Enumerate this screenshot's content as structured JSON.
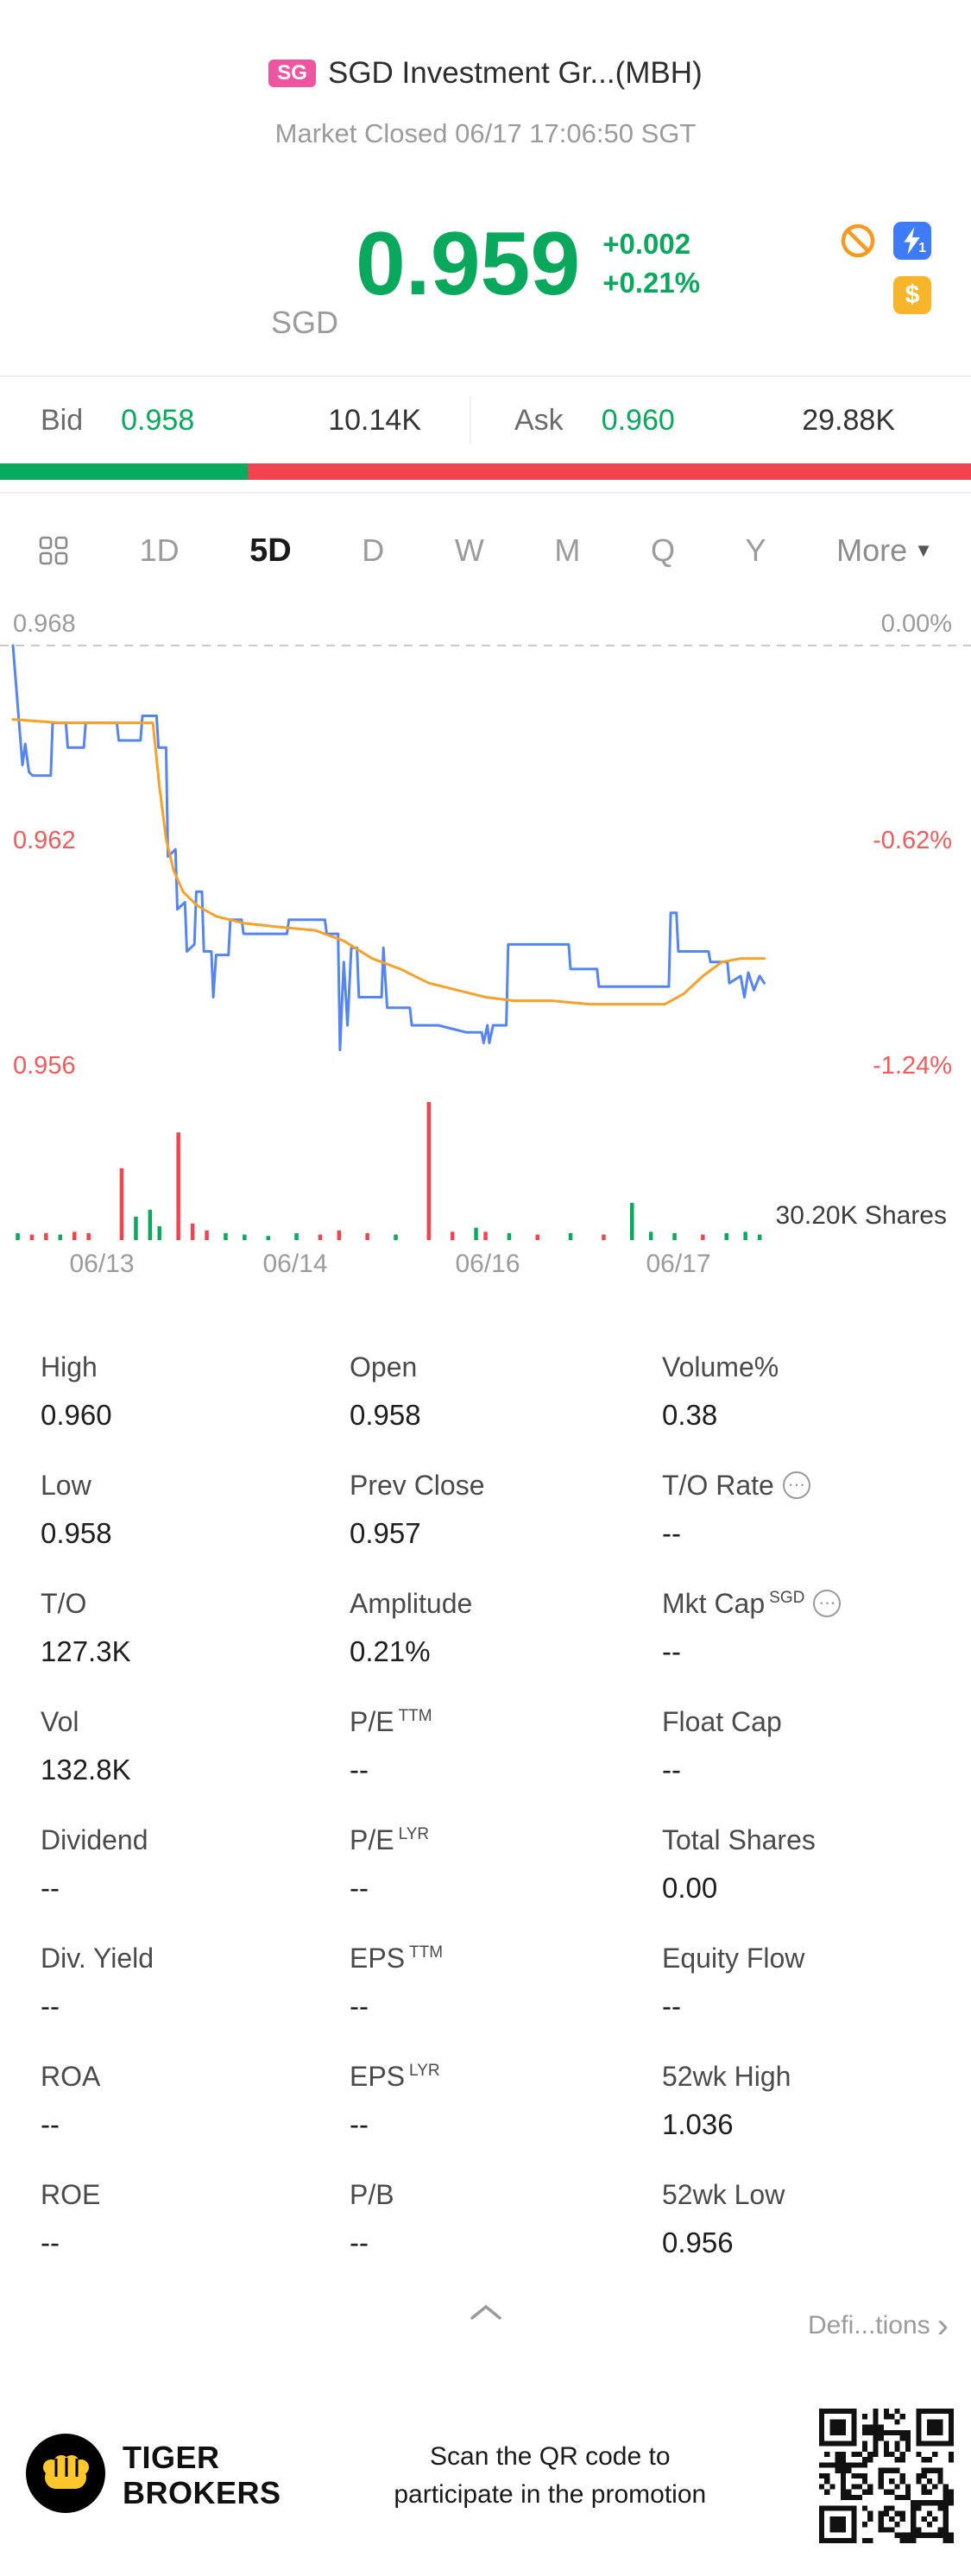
{
  "header": {
    "badge": "SG",
    "title": "SGD Investment Gr...(MBH)",
    "status": "Market Closed 06/17 17:06:50 SGT"
  },
  "quote": {
    "currency": "SGD",
    "price": "0.959",
    "change": "+0.002",
    "change_pct": "+0.21%"
  },
  "order_book": {
    "bid_label": "Bid",
    "bid_price": "0.958",
    "bid_size": "10.14K",
    "ask_label": "Ask",
    "ask_price": "0.960",
    "ask_size": "29.88K",
    "bid_ratio": 0.255
  },
  "toolbar": {
    "tabs": [
      {
        "label": "1D",
        "active": false
      },
      {
        "label": "5D",
        "active": true
      },
      {
        "label": "D",
        "active": false
      },
      {
        "label": "W",
        "active": false
      },
      {
        "label": "M",
        "active": false
      },
      {
        "label": "Q",
        "active": false
      },
      {
        "label": "Y",
        "active": false
      }
    ],
    "more_label": "More"
  },
  "chart_data": {
    "type": "line",
    "timeframe": "5D",
    "title": "5-day intraday price chart with average line and volume",
    "y_axis_left": [
      "0.968",
      "0.962",
      "0.956"
    ],
    "y_axis_right": [
      "0.00%",
      "-0.62%",
      "-1.24%"
    ],
    "x_labels": [
      "06/13",
      "06/14",
      "06/16",
      "06/17"
    ],
    "baseline": 0.968,
    "ylim": [
      0.956,
      0.968
    ],
    "volume_label": "30.20K Shares",
    "legend_position": "none",
    "grid": false,
    "colors": {
      "price_line": "#5485f2",
      "avg_line": "#f6a12c",
      "up": "#09a95e",
      "down": "#f0454e",
      "baseline_dash": "#c9c9c9"
    },
    "series": [
      {
        "name": "price",
        "points": [
          [
            0,
            0.968
          ],
          [
            0.005,
            0.9663
          ],
          [
            0.01,
            0.9646
          ],
          [
            0.013,
            0.9652
          ],
          [
            0.017,
            0.9644
          ],
          [
            0.021,
            0.9643
          ],
          [
            0.04,
            0.9643
          ],
          [
            0.042,
            0.9658
          ],
          [
            0.056,
            0.9658
          ],
          [
            0.058,
            0.9651
          ],
          [
            0.075,
            0.9651
          ],
          [
            0.077,
            0.9658
          ],
          [
            0.11,
            0.9658
          ],
          [
            0.112,
            0.9653
          ],
          [
            0.135,
            0.9653
          ],
          [
            0.137,
            0.966
          ],
          [
            0.152,
            0.966
          ],
          [
            0.154,
            0.9651
          ],
          [
            0.162,
            0.9651
          ],
          [
            0.164,
            0.962
          ],
          [
            0.172,
            0.9622
          ],
          [
            0.174,
            0.9605
          ],
          [
            0.182,
            0.9607
          ],
          [
            0.184,
            0.9593
          ],
          [
            0.192,
            0.9595
          ],
          [
            0.194,
            0.961
          ],
          [
            0.2,
            0.961
          ],
          [
            0.202,
            0.9593
          ],
          [
            0.21,
            0.9593
          ],
          [
            0.212,
            0.958
          ],
          [
            0.215,
            0.9592
          ],
          [
            0.228,
            0.9592
          ],
          [
            0.23,
            0.9602
          ],
          [
            0.242,
            0.9602
          ],
          [
            0.244,
            0.9598
          ],
          [
            0.29,
            0.9598
          ],
          [
            0.292,
            0.9602
          ],
          [
            0.33,
            0.9602
          ],
          [
            0.332,
            0.9598
          ],
          [
            0.344,
            0.9598
          ],
          [
            0.346,
            0.9565
          ],
          [
            0.35,
            0.959
          ],
          [
            0.354,
            0.9572
          ],
          [
            0.358,
            0.9594
          ],
          [
            0.364,
            0.9594
          ],
          [
            0.366,
            0.958
          ],
          [
            0.39,
            0.958
          ],
          [
            0.392,
            0.9594
          ],
          [
            0.396,
            0.9577
          ],
          [
            0.42,
            0.9577
          ],
          [
            0.422,
            0.9572
          ],
          [
            0.45,
            0.9572
          ],
          [
            0.48,
            0.957
          ],
          [
            0.496,
            0.957
          ],
          [
            0.498,
            0.9567
          ],
          [
            0.502,
            0.9572
          ],
          [
            0.504,
            0.9567
          ],
          [
            0.508,
            0.9572
          ],
          [
            0.522,
            0.9572
          ],
          [
            0.524,
            0.9595
          ],
          [
            0.588,
            0.9595
          ],
          [
            0.59,
            0.9588
          ],
          [
            0.618,
            0.9588
          ],
          [
            0.62,
            0.9583
          ],
          [
            0.694,
            0.9583
          ],
          [
            0.696,
            0.9604
          ],
          [
            0.702,
            0.9604
          ],
          [
            0.704,
            0.9593
          ],
          [
            0.736,
            0.9593
          ],
          [
            0.738,
            0.959
          ],
          [
            0.756,
            0.959
          ],
          [
            0.758,
            0.9584
          ],
          [
            0.77,
            0.9586
          ],
          [
            0.774,
            0.958
          ],
          [
            0.778,
            0.9587
          ],
          [
            0.784,
            0.9582
          ],
          [
            0.79,
            0.9586
          ],
          [
            0.795,
            0.9584
          ]
        ]
      },
      {
        "name": "average",
        "points": [
          [
            0,
            0.9659
          ],
          [
            0.05,
            0.9658
          ],
          [
            0.1,
            0.9658
          ],
          [
            0.148,
            0.9658
          ],
          [
            0.155,
            0.964
          ],
          [
            0.162,
            0.9625
          ],
          [
            0.17,
            0.9616
          ],
          [
            0.18,
            0.961
          ],
          [
            0.195,
            0.9606
          ],
          [
            0.215,
            0.9603
          ],
          [
            0.245,
            0.9601
          ],
          [
            0.28,
            0.96
          ],
          [
            0.32,
            0.9599
          ],
          [
            0.35,
            0.9596
          ],
          [
            0.38,
            0.9591
          ],
          [
            0.41,
            0.9588
          ],
          [
            0.44,
            0.9584
          ],
          [
            0.47,
            0.9582
          ],
          [
            0.5,
            0.958
          ],
          [
            0.53,
            0.9579
          ],
          [
            0.57,
            0.9579
          ],
          [
            0.61,
            0.9578
          ],
          [
            0.65,
            0.9578
          ],
          [
            0.69,
            0.9578
          ],
          [
            0.71,
            0.9581
          ],
          [
            0.73,
            0.9586
          ],
          [
            0.75,
            0.959
          ],
          [
            0.77,
            0.9591
          ],
          [
            0.785,
            0.9591
          ],
          [
            0.795,
            0.9591
          ]
        ]
      }
    ],
    "volume_bars": [
      [
        0.005,
        0.05,
        "g"
      ],
      [
        0.02,
        0.04,
        "r"
      ],
      [
        0.035,
        0.05,
        "r"
      ],
      [
        0.05,
        0.04,
        "g"
      ],
      [
        0.065,
        0.06,
        "r"
      ],
      [
        0.08,
        0.05,
        "r"
      ],
      [
        0.115,
        0.52,
        "r"
      ],
      [
        0.13,
        0.17,
        "g"
      ],
      [
        0.145,
        0.22,
        "g"
      ],
      [
        0.155,
        0.1,
        "g"
      ],
      [
        0.175,
        0.78,
        "r"
      ],
      [
        0.19,
        0.12,
        "r"
      ],
      [
        0.205,
        0.07,
        "r"
      ],
      [
        0.225,
        0.05,
        "g"
      ],
      [
        0.245,
        0.04,
        "g"
      ],
      [
        0.27,
        0.03,
        "g"
      ],
      [
        0.3,
        0.05,
        "g"
      ],
      [
        0.325,
        0.04,
        "r"
      ],
      [
        0.345,
        0.07,
        "r"
      ],
      [
        0.375,
        0.05,
        "r"
      ],
      [
        0.405,
        0.04,
        "g"
      ],
      [
        0.44,
        1,
        "r"
      ],
      [
        0.465,
        0.06,
        "r"
      ],
      [
        0.49,
        0.09,
        "g"
      ],
      [
        0.5,
        0.06,
        "r"
      ],
      [
        0.525,
        0.05,
        "g"
      ],
      [
        0.555,
        0.04,
        "r"
      ],
      [
        0.59,
        0.05,
        "g"
      ],
      [
        0.625,
        0.04,
        "r"
      ],
      [
        0.655,
        0.27,
        "g"
      ],
      [
        0.675,
        0.06,
        "g"
      ],
      [
        0.7,
        0.05,
        "g"
      ],
      [
        0.73,
        0.04,
        "r"
      ],
      [
        0.755,
        0.05,
        "g"
      ],
      [
        0.775,
        0.06,
        "g"
      ],
      [
        0.79,
        0.04,
        "g"
      ]
    ]
  },
  "stats": {
    "cells": [
      {
        "label": "High",
        "value": "0.960"
      },
      {
        "label": "Open",
        "value": "0.958"
      },
      {
        "label": "Volume%",
        "value": "0.38"
      },
      {
        "label": "Low",
        "value": "0.958"
      },
      {
        "label": "Prev Close",
        "value": "0.957"
      },
      {
        "label": "T/O Rate",
        "info": true,
        "value": "--"
      },
      {
        "label": "T/O",
        "value": "127.3K"
      },
      {
        "label": "Amplitude",
        "value": "0.21%"
      },
      {
        "label": "Mkt Cap",
        "sup": "SGD",
        "info": true,
        "value": "--"
      },
      {
        "label": "Vol",
        "value": "132.8K"
      },
      {
        "label": "P/E",
        "sup": "TTM",
        "value": "--"
      },
      {
        "label": "Float Cap",
        "value": "--"
      },
      {
        "label": "Dividend",
        "value": "--"
      },
      {
        "label": "P/E",
        "sup": "LYR",
        "value": "--"
      },
      {
        "label": "Total Shares",
        "value": "0.00"
      },
      {
        "label": "Div. Yield",
        "value": "--"
      },
      {
        "label": "EPS",
        "sup": "TTM",
        "value": "--"
      },
      {
        "label": "Equity Flow",
        "value": "--"
      },
      {
        "label": "ROA",
        "value": "--"
      },
      {
        "label": "EPS",
        "sup": "LYR",
        "value": "--"
      },
      {
        "label": "52wk High",
        "value": "1.036"
      },
      {
        "label": "ROE",
        "value": "--"
      },
      {
        "label": "P/B",
        "value": "--"
      },
      {
        "label": "52wk Low",
        "value": "0.956"
      }
    ]
  },
  "collapse": {
    "definitions_label": "Defi...tions"
  },
  "footer": {
    "brand_line1": "TIGER",
    "brand_line2": "BROKERS",
    "promo": "Scan the QR code to participate in the promotion"
  }
}
